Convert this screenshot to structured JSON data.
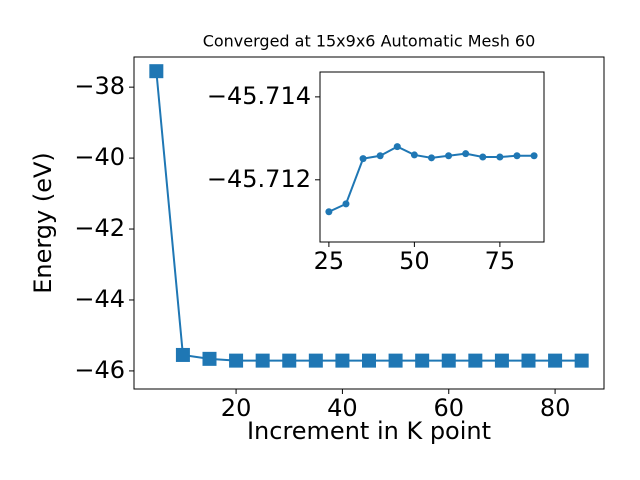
{
  "chart_data": [
    {
      "type": "line",
      "title": "Converged at 15x9x6 Automatic Mesh 60",
      "x_label": "Increment in K point",
      "y_label": "Energy (eV)",
      "x": [
        5,
        10,
        15,
        20,
        25,
        30,
        35,
        40,
        45,
        50,
        55,
        60,
        65,
        70,
        75,
        80,
        85
      ],
      "values": [
        -37.55,
        -45.55,
        -45.66,
        -45.71,
        -45.71,
        -45.71,
        -45.71,
        -45.71,
        -45.71,
        -45.71,
        -45.71,
        -45.71,
        -45.71,
        -45.71,
        -45.71,
        -45.71,
        -45.71
      ],
      "color": "#1f77b4",
      "marker": "square",
      "xlim": [
        0.8,
        89.2
      ],
      "ylim": [
        -46.51,
        -37.15
      ],
      "xticks": [
        20,
        40,
        60,
        80
      ],
      "yticks": [
        {
          "value": -38,
          "label": "−38"
        },
        {
          "value": -40,
          "label": "−40"
        },
        {
          "value": -42,
          "label": "−42"
        },
        {
          "value": -44,
          "label": "−44"
        },
        {
          "value": -46,
          "label": "−46"
        }
      ]
    },
    {
      "type": "line",
      "x": [
        25,
        30,
        35,
        40,
        45,
        50,
        55,
        60,
        65,
        70,
        75,
        80,
        85
      ],
      "values": [
        -45.71123,
        -45.71142,
        -45.71251,
        -45.71258,
        -45.7128,
        -45.7126,
        -45.71253,
        -45.71258,
        -45.71263,
        -45.71255,
        -45.71255,
        -45.71258,
        -45.71258
      ],
      "color": "#1f77b4",
      "marker": "circle",
      "xlim": [
        22.4,
        87.9
      ],
      "ylim": [
        -45.7105,
        -45.7146
      ],
      "xticks": [
        25,
        50,
        75
      ],
      "yticks": [
        {
          "value": -45.714,
          "label": "−45.714"
        },
        {
          "value": -45.712,
          "label": "−45.712"
        }
      ]
    }
  ]
}
